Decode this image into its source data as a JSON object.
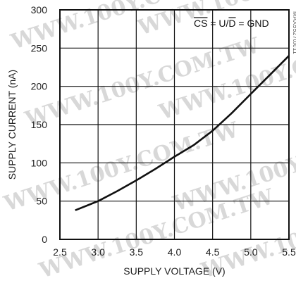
{
  "chart_data": {
    "type": "line",
    "xlabel": "SUPPLY VOLTAGE (V)",
    "ylabel": "SUPPLY CURRENT (nA)",
    "xlim": [
      2.5,
      5.5
    ],
    "ylim": [
      0,
      300
    ],
    "x_ticks": [
      "2.5",
      "3.0",
      "3.5",
      "4.0",
      "4.5",
      "5.0",
      "5.5"
    ],
    "y_ticks": [
      "0",
      "50",
      "100",
      "150",
      "200",
      "250",
      "300"
    ],
    "grid": true,
    "annotation": {
      "cs": "CS",
      "middle": " = U/",
      "d": "D",
      "rest": " = GND"
    },
    "figure_id": "MAX5527toc11",
    "watermark": "WWW.100Y.COM.TW",
    "series": [
      {
        "x": [
          2.7,
          3.0,
          3.25,
          3.5,
          3.75,
          4.0,
          4.25,
          4.5,
          4.75,
          5.0,
          5.25,
          5.5
        ],
        "values": [
          38,
          50,
          63,
          77,
          92,
          108,
          123,
          142,
          165,
          190,
          215,
          240
        ]
      }
    ]
  }
}
